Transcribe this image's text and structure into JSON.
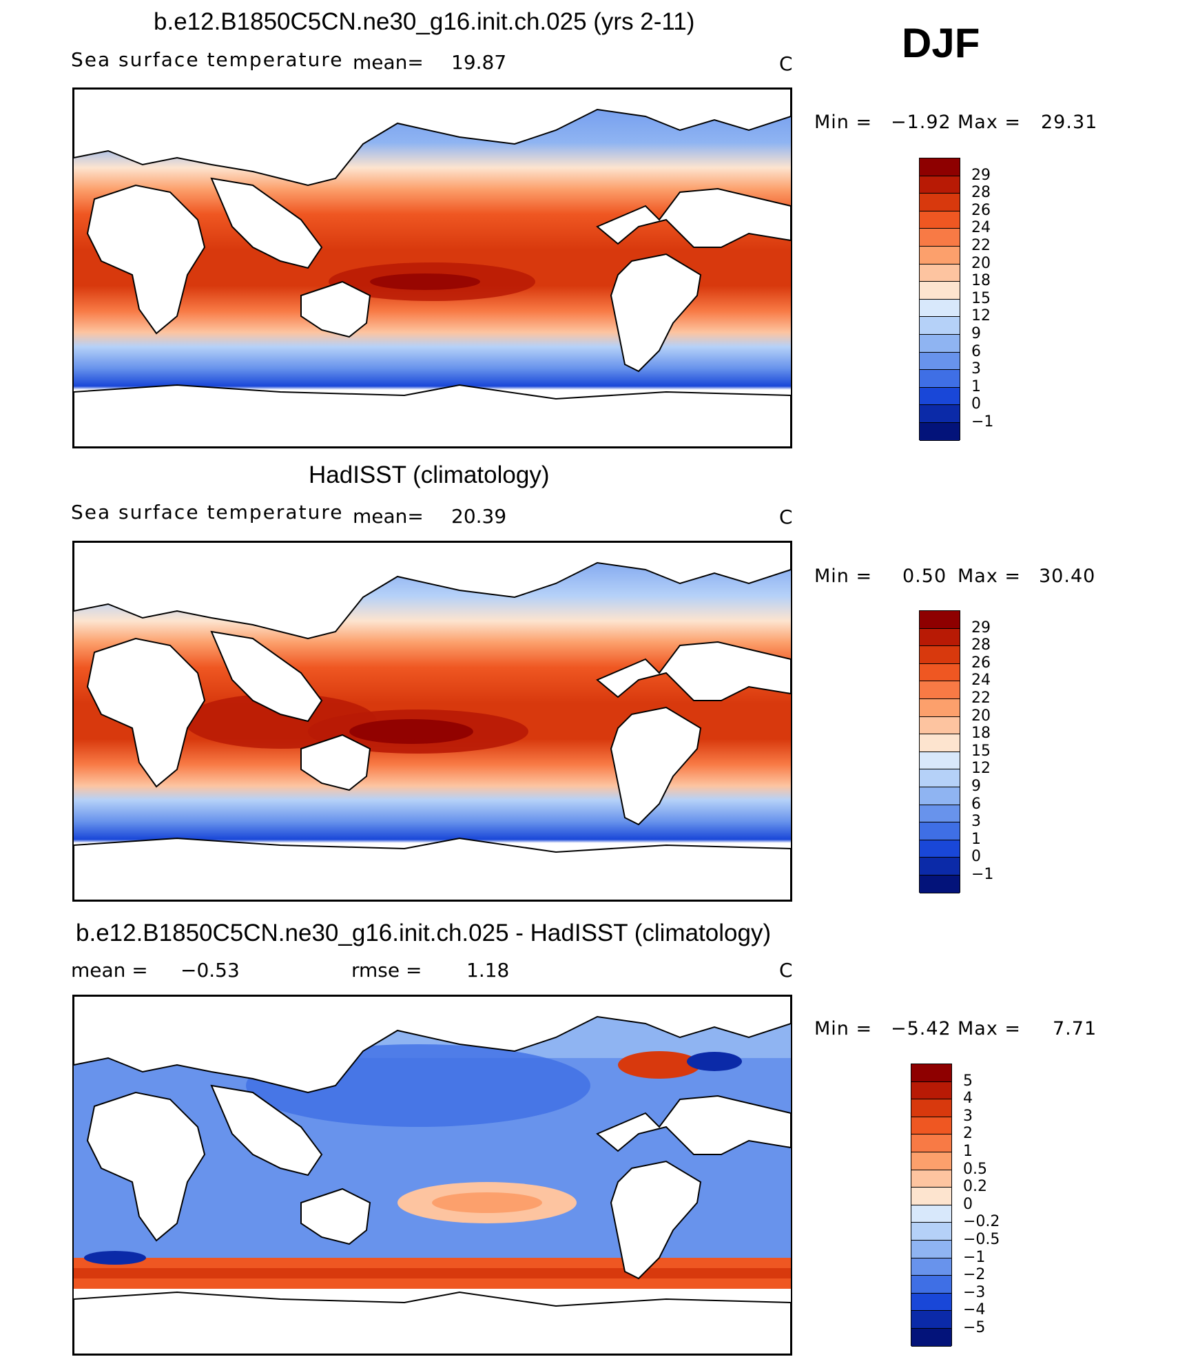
{
  "season": "DJF",
  "panels": [
    {
      "title": "b.e12.B1850C5CN.ne30_g16.init.ch.025 (yrs 2-11)",
      "left_label": "Sea surface temperature",
      "stat1_label": "mean=",
      "stat1_value": "19.87",
      "units": "C",
      "min_label": "Min =",
      "min_value": "−1.92",
      "max_label": "Max =",
      "max_value": "29.31",
      "colorbar_labels": [
        "29",
        "28",
        "26",
        "24",
        "22",
        "20",
        "18",
        "15",
        "12",
        "9",
        "6",
        "3",
        "1",
        "0",
        "−1"
      ],
      "colorbar_colors": [
        "#8e0000",
        "#b81a05",
        "#d8390d",
        "#ef5722",
        "#f87a45",
        "#fca06c",
        "#fdc4a0",
        "#fde4cf",
        "#d8e8fb",
        "#b5d1f8",
        "#8fb4f2",
        "#6893ec",
        "#3f6fe5",
        "#1947d8",
        "#0b2aa8",
        "#03137a"
      ]
    },
    {
      "title": "HadISST (climatology)",
      "left_label": "Sea surface temperature",
      "stat1_label": "mean=",
      "stat1_value": "20.39",
      "units": "C",
      "min_label": "Min =",
      "min_value": "0.50",
      "max_label": "Max =",
      "max_value": "30.40",
      "colorbar_labels": [
        "29",
        "28",
        "26",
        "24",
        "22",
        "20",
        "18",
        "15",
        "12",
        "9",
        "6",
        "3",
        "1",
        "0",
        "−1"
      ],
      "colorbar_colors": [
        "#8e0000",
        "#b81a05",
        "#d8390d",
        "#ef5722",
        "#f87a45",
        "#fca06c",
        "#fdc4a0",
        "#fde4cf",
        "#d8e8fb",
        "#b5d1f8",
        "#8fb4f2",
        "#6893ec",
        "#3f6fe5",
        "#1947d8",
        "#0b2aa8",
        "#03137a"
      ]
    },
    {
      "title": "b.e12.B1850C5CN.ne30_g16.init.ch.025 - HadISST (climatology)",
      "left_label": "mean =",
      "left_value": "−0.53",
      "stat1_label": "rmse =",
      "stat1_value": "1.18",
      "units": "C",
      "min_label": "Min =",
      "min_value": "−5.42",
      "max_label": "Max =",
      "max_value": "7.71",
      "colorbar_labels": [
        "5",
        "4",
        "3",
        "2",
        "1",
        "0.5",
        "0.2",
        "0",
        "−0.2",
        "−0.5",
        "−1",
        "−2",
        "−3",
        "−4",
        "−5"
      ],
      "colorbar_colors": [
        "#8e0000",
        "#b81a05",
        "#d8390d",
        "#ef5722",
        "#f87a45",
        "#fca06c",
        "#fdc4a0",
        "#fde4cf",
        "#d8e8fb",
        "#b5d1f8",
        "#8fb4f2",
        "#6893ec",
        "#3f6fe5",
        "#1947d8",
        "#0b2aa8",
        "#03137a"
      ]
    }
  ],
  "chart_data": [
    {
      "type": "heatmap",
      "title": "b.e12.B1850C5CN.ne30_g16.init.ch.025 (yrs 2-11)",
      "variable": "Sea surface temperature",
      "units": "C",
      "mean": 19.87,
      "min": -1.92,
      "max": 29.31,
      "contour_levels": [
        -1,
        0,
        1,
        3,
        6,
        9,
        12,
        15,
        18,
        20,
        22,
        24,
        26,
        28,
        29
      ]
    },
    {
      "type": "heatmap",
      "title": "HadISST (climatology)",
      "variable": "Sea surface temperature",
      "units": "C",
      "mean": 20.39,
      "min": 0.5,
      "max": 30.4,
      "contour_levels": [
        -1,
        0,
        1,
        3,
        6,
        9,
        12,
        15,
        18,
        20,
        22,
        24,
        26,
        28,
        29
      ]
    },
    {
      "type": "heatmap",
      "title": "b.e12.B1850C5CN.ne30_g16.init.ch.025 - HadISST (climatology)",
      "units": "C",
      "mean": -0.53,
      "rmse": 1.18,
      "min": -5.42,
      "max": 7.71,
      "contour_levels": [
        -5,
        -4,
        -3,
        -2,
        -1,
        -0.5,
        -0.2,
        0,
        0.2,
        0.5,
        1,
        2,
        3,
        4,
        5
      ]
    }
  ]
}
